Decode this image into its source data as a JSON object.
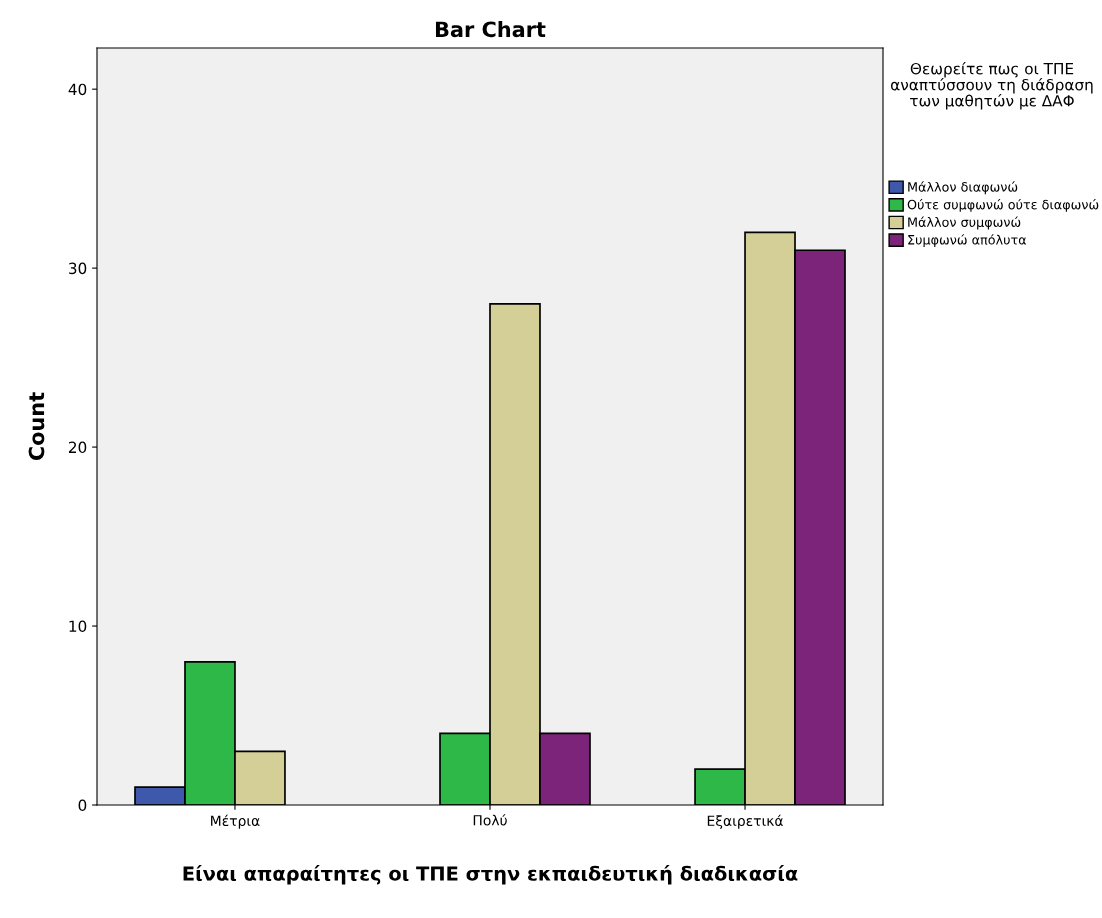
{
  "chart_data": {
    "type": "bar",
    "title": "Bar Chart",
    "xlabel": "Είναι απαραίτητες οι ΤΠΕ στην εκπαιδευτική διαδικασία",
    "ylabel": "Count",
    "legend_title": "Θεωρείτε πως οι ΤΠΕ αναπτύσσουν τη διάδραση των μαθητών με ΔΑΦ",
    "categories": [
      "Μέτρια",
      "Πολύ",
      "Εξαιρετικά"
    ],
    "series": [
      {
        "name": "Μάλλον διαφωνώ",
        "color": "#3e58ac",
        "values": [
          1,
          null,
          null
        ]
      },
      {
        "name": "Ούτε συμφωνώ ούτε διαφωνώ",
        "color": "#2eb848",
        "values": [
          8,
          4,
          2
        ]
      },
      {
        "name": "Μάλλον συμφωνώ",
        "color": "#d4cf96",
        "values": [
          3,
          28,
          32
        ]
      },
      {
        "name": "Συμφωνώ απόλυτα",
        "color": "#7c2479",
        "values": [
          null,
          4,
          31
        ]
      }
    ],
    "ylim": [
      0,
      42.3
    ],
    "yticks": [
      0,
      10,
      20,
      30,
      40
    ],
    "grid": false,
    "legend": "right"
  }
}
